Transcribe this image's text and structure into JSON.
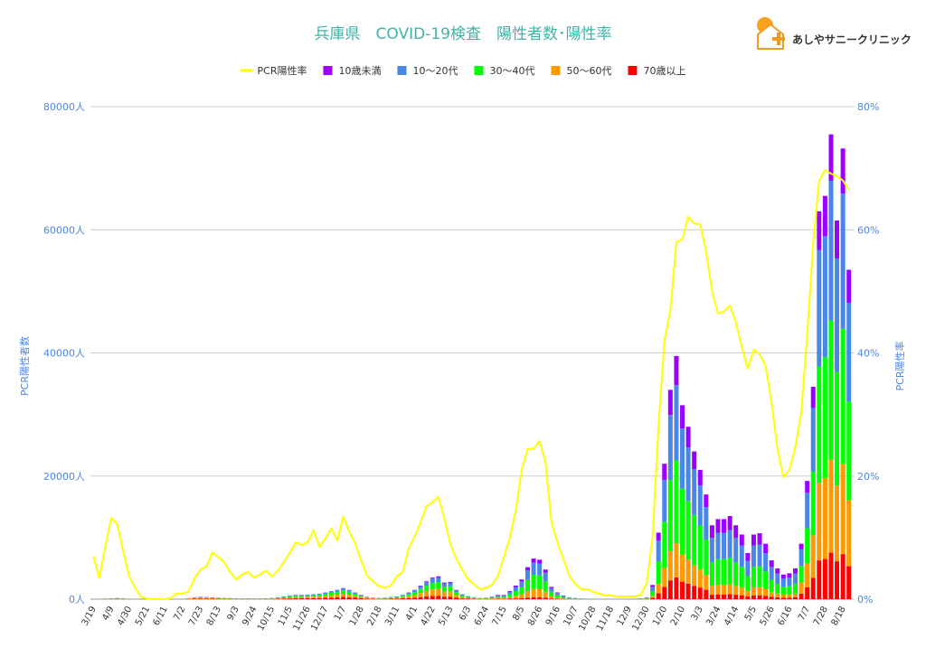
{
  "chart_data": {
    "type": "bar",
    "stacked": true,
    "title": "兵庫県　COVID-19検査　陽性者数･陽性率",
    "logo": "あしやサニークリニック",
    "y_label": "PCR陽性者数",
    "y2_label": "PCR陽性率",
    "grid": true,
    "legend": "top",
    "ylim": [
      0,
      80000
    ],
    "yticks": [
      {
        "value": 0,
        "label": "0人"
      },
      {
        "value": 20000,
        "label": "20000人"
      },
      {
        "value": 40000,
        "label": "40000人"
      },
      {
        "value": 60000,
        "label": "60000人"
      },
      {
        "value": 80000,
        "label": "80000人"
      }
    ],
    "y2lim": [
      0,
      80
    ],
    "y2ticks": [
      {
        "value": 0,
        "label": "0%"
      },
      {
        "value": 20,
        "label": "20%"
      },
      {
        "value": 40,
        "label": "40%"
      },
      {
        "value": 60,
        "label": "60%"
      },
      {
        "value": 80,
        "label": "80%"
      }
    ],
    "categories": [
      "3/19",
      null,
      null,
      "4/9",
      null,
      null,
      "4/30",
      null,
      null,
      "5/21",
      null,
      null,
      "6/11",
      null,
      null,
      "7/2",
      null,
      null,
      "7/23",
      null,
      null,
      "8/13",
      null,
      null,
      "9/3",
      null,
      null,
      "9/24",
      null,
      null,
      "10/15",
      null,
      null,
      "11/5",
      null,
      null,
      "11/26",
      null,
      null,
      "12/17",
      null,
      null,
      "1/7",
      null,
      null,
      "1/28",
      null,
      null,
      "2/18",
      null,
      null,
      "3/11",
      null,
      null,
      "4/1",
      null,
      null,
      "4/22",
      null,
      null,
      "5/13",
      null,
      null,
      "6/3",
      null,
      null,
      "6/24",
      null,
      null,
      "7/15",
      null,
      null,
      "8/5",
      null,
      null,
      "8/26",
      null,
      null,
      "9/16",
      null,
      null,
      "10/7",
      null,
      null,
      "10/28",
      null,
      null,
      "11/18",
      null,
      null,
      "12/9",
      null,
      null,
      "12/30",
      null,
      null,
      "1/20",
      null,
      null,
      "2/10",
      null,
      null,
      "3/3",
      null,
      null,
      "3/24",
      null,
      null,
      "4/14",
      null,
      null,
      "5/5",
      null,
      null,
      "5/26",
      null,
      null,
      "6/16",
      null,
      null,
      "7/7",
      null,
      null,
      "7/28",
      null,
      null,
      "8/18",
      null
    ],
    "series": [
      {
        "name": "PCR陽性率",
        "type": "line",
        "axis": "y2",
        "color": "#ffff00",
        "values": [
          7.0,
          3.4,
          8.5,
          13.2,
          12.2,
          7.8,
          3.7,
          1.9,
          0.4,
          0.1,
          0,
          0,
          0,
          0.2,
          0.9,
          0.9,
          1.2,
          3.4,
          4.8,
          5.3,
          7.6,
          6.8,
          6.0,
          4.4,
          3.2,
          4.0,
          4.4,
          3.5,
          4.0,
          4.6,
          3.7,
          4.6,
          6.0,
          7.5,
          9.2,
          8.8,
          9.2,
          11.2,
          8.5,
          9.8,
          11.5,
          9.5,
          13.4,
          11.0,
          9.1,
          6.3,
          3.8,
          2.9,
          2.1,
          1.9,
          2.2,
          3.7,
          4.4,
          8.2,
          10.1,
          12.5,
          15.1,
          15.7,
          16.6,
          13.1,
          9.0,
          6.6,
          4.8,
          3.2,
          2.4,
          1.6,
          1.8,
          2.3,
          3.8,
          6.8,
          10.0,
          14.4,
          21.0,
          24.4,
          24.4,
          25.7,
          22.2,
          12.5,
          9.2,
          6.6,
          3.8,
          2.5,
          1.6,
          1.6,
          1.2,
          0.9,
          0.6,
          0.6,
          0.4,
          0.4,
          0.5,
          0.4,
          0.7,
          2.5,
          10,
          28,
          42,
          47,
          58,
          58.4,
          62.1,
          61,
          60.9,
          56.5,
          50,
          46.4,
          46.7,
          47.7,
          45,
          41,
          37.4,
          40.5,
          39.8,
          37.9,
          32,
          24.4,
          19.8,
          21,
          24.7,
          30.5,
          43,
          57.7,
          68,
          69.7,
          69.1,
          68.7,
          68,
          66.5
        ]
      },
      {
        "name": "10歳未満",
        "color": "#9900ff",
        "values": [
          1,
          2,
          3,
          4,
          6,
          4,
          2,
          1,
          0,
          0,
          0,
          0,
          0,
          0,
          1,
          2,
          4,
          9,
          12,
          10,
          9,
          7,
          6,
          5,
          4,
          4,
          4,
          4,
          4,
          4,
          6,
          9,
          13,
          18,
          21,
          21,
          22,
          24,
          27,
          33,
          39,
          45,
          54,
          45,
          33,
          21,
          12,
          7,
          6,
          7,
          10,
          13,
          21,
          55,
          75,
          110,
          145,
          175,
          185,
          135,
          140,
          75,
          40,
          25,
          15,
          10,
          12,
          40,
          70,
          70,
          130,
          220,
          320,
          520,
          660,
          640,
          480,
          200,
          110,
          60,
          30,
          20,
          12,
          8,
          5,
          4,
          3,
          3,
          4,
          5,
          6,
          8,
          15,
          30,
          276,
          1296,
          2640,
          4080,
          4740,
          3780,
          3360,
          2880,
          2520,
          2040,
          2040,
          2210,
          2210,
          2295,
          2040,
          1785,
          1275,
          1785,
          1819,
          1530,
          1071,
          850,
          680,
          714,
          850,
          900,
          1920,
          3450,
          6300,
          6550,
          7550,
          6150,
          7320,
          5350
        ]
      },
      {
        "name": "10～20代",
        "color": "#4a86e8",
        "values": [
          5,
          10,
          17,
          26,
          34,
          26,
          14,
          5,
          2,
          1,
          0,
          0,
          1,
          2,
          3,
          10,
          26,
          51,
          68,
          60,
          51,
          43,
          34,
          31,
          26,
          26,
          26,
          20,
          22,
          26,
          34,
          51,
          77,
          102,
          119,
          119,
          128,
          136,
          153,
          187,
          221,
          255,
          306,
          255,
          187,
          119,
          68,
          43,
          34,
          43,
          60,
          77,
          119,
          220,
          300,
          440,
          580,
          700,
          740,
          540,
          560,
          300,
          160,
          100,
          60,
          40,
          50,
          120,
          210,
          210,
          390,
          660,
          960,
          1560,
          1980,
          1920,
          1440,
          600,
          330,
          180,
          90,
          60,
          36,
          24,
          15,
          12,
          9,
          9,
          12,
          15,
          18,
          24,
          45,
          90,
          713,
          3348,
          6820,
          10540,
          12245,
          9765,
          8680,
          7440,
          6510,
          5270,
          3960,
          4290,
          4290,
          4455,
          3960,
          3465,
          2475,
          3465,
          3531,
          2970,
          2079,
          1650,
          1320,
          1386,
          1650,
          2700,
          5760,
          10350,
          18900,
          19650,
          22650,
          18450,
          21960,
          16050
        ]
      },
      {
        "name": "30～40代",
        "color": "#00ff00",
        "values": [
          9,
          18,
          30,
          45,
          60,
          45,
          24,
          9,
          3,
          1,
          0,
          0,
          1,
          3,
          6,
          18,
          45,
          90,
          120,
          105,
          90,
          75,
          60,
          54,
          45,
          45,
          45,
          36,
          39,
          45,
          60,
          90,
          135,
          180,
          210,
          210,
          225,
          240,
          270,
          330,
          390,
          450,
          540,
          450,
          330,
          210,
          120,
          75,
          60,
          75,
          105,
          135,
          210,
          330,
          450,
          660,
          870,
          1050,
          1110,
          810,
          840,
          450,
          240,
          150,
          90,
          60,
          75,
          140,
          245,
          245,
          455,
          770,
          1120,
          1820,
          2310,
          2240,
          1680,
          700,
          385,
          210,
          105,
          70,
          42,
          28,
          17,
          14,
          10,
          10,
          14,
          17,
          21,
          28,
          52,
          105,
          782,
          3672,
          7480,
          11560,
          13430,
          10710,
          9520,
          8160,
          7140,
          5780,
          3840,
          4160,
          4160,
          4320,
          3840,
          3360,
          2400,
          3360,
          3424,
          2880,
          2016,
          1600,
          1280,
          1344,
          1600,
          2700,
          5760,
          10350,
          18900,
          19650,
          22650,
          18450,
          21960,
          16050
        ]
      },
      {
        "name": "50～60代",
        "color": "#ff9900",
        "values": [
          9,
          18,
          30,
          45,
          60,
          45,
          24,
          9,
          3,
          2,
          0,
          0,
          2,
          3,
          6,
          18,
          45,
          90,
          120,
          105,
          90,
          75,
          60,
          54,
          45,
          45,
          45,
          36,
          39,
          45,
          60,
          90,
          135,
          180,
          210,
          210,
          225,
          240,
          270,
          330,
          390,
          450,
          540,
          450,
          330,
          210,
          120,
          75,
          60,
          75,
          105,
          135,
          210,
          330,
          450,
          660,
          870,
          1050,
          1110,
          810,
          840,
          450,
          240,
          150,
          90,
          60,
          75,
          80,
          140,
          140,
          260,
          440,
          640,
          1040,
          1320,
          1280,
          960,
          400,
          220,
          120,
          60,
          40,
          24,
          16,
          10,
          8,
          6,
          6,
          8,
          10,
          12,
          16,
          30,
          60,
          322,
          1512,
          3080,
          4760,
          5530,
          4410,
          3920,
          3360,
          2940,
          2380,
          1440,
          1560,
          1560,
          1620,
          1440,
          1260,
          900,
          1260,
          1284,
          1080,
          756,
          600,
          480,
          504,
          600,
          1800,
          3840,
          6900,
          12600,
          13100,
          15100,
          12300,
          14640,
          10700
        ]
      },
      {
        "name": "70歳以上",
        "color": "#ff0000",
        "values": [
          6,
          12,
          20,
          30,
          40,
          30,
          16,
          6,
          2,
          1,
          0,
          0,
          1,
          2,
          4,
          12,
          30,
          60,
          80,
          70,
          60,
          50,
          40,
          36,
          30,
          30,
          30,
          24,
          26,
          30,
          40,
          60,
          90,
          120,
          140,
          140,
          150,
          160,
          180,
          220,
          260,
          300,
          360,
          300,
          220,
          140,
          80,
          50,
          40,
          50,
          70,
          90,
          140,
          165,
          225,
          330,
          435,
          525,
          555,
          405,
          420,
          225,
          120,
          75,
          45,
          30,
          38,
          20,
          35,
          35,
          65,
          110,
          160,
          260,
          330,
          320,
          240,
          100,
          55,
          30,
          15,
          10,
          6,
          4,
          3,
          2,
          2,
          2,
          2,
          3,
          3,
          4,
          8,
          15,
          207,
          972,
          1980,
          3060,
          3555,
          2835,
          2520,
          2160,
          1890,
          1530,
          720,
          780,
          780,
          810,
          720,
          630,
          450,
          630,
          642,
          540,
          378,
          300,
          240,
          252,
          300,
          900,
          1920,
          3450,
          6300,
          6550,
          7550,
          6150,
          7320,
          5350
        ]
      }
    ]
  }
}
